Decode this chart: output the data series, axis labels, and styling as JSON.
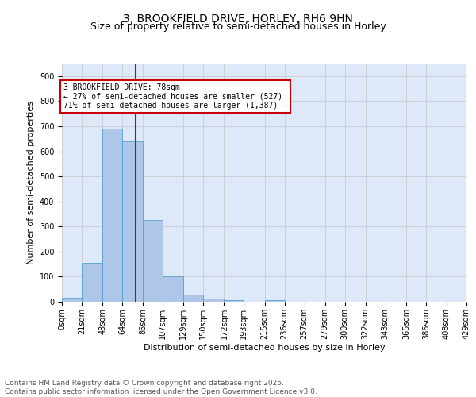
{
  "title": "3, BROOKFIELD DRIVE, HORLEY, RH6 9HN",
  "subtitle": "Size of property relative to semi-detached houses in Horley",
  "xlabel": "Distribution of semi-detached houses by size in Horley",
  "ylabel": "Number of semi-detached properties",
  "bin_edges": [
    0,
    21,
    43,
    64,
    86,
    107,
    129,
    150,
    172,
    193,
    215,
    236,
    257,
    279,
    300,
    322,
    343,
    365,
    386,
    408,
    429
  ],
  "bar_heights": [
    15,
    155,
    690,
    640,
    325,
    100,
    28,
    12,
    5,
    0,
    5,
    0,
    0,
    0,
    0,
    0,
    0,
    0,
    0,
    0
  ],
  "bar_color": "#aec6e8",
  "bar_edge_color": "#5a9fd4",
  "grid_color": "#cccccc",
  "bg_color": "#dde8f8",
  "property_value": 78,
  "property_line_color": "#cc0000",
  "annotation_text": "3 BROOKFIELD DRIVE: 78sqm\n← 27% of semi-detached houses are smaller (527)\n71% of semi-detached houses are larger (1,387) →",
  "annotation_box_color": "#cc0000",
  "ylim": [
    0,
    950
  ],
  "yticks": [
    0,
    100,
    200,
    300,
    400,
    500,
    600,
    700,
    800,
    900
  ],
  "xtick_labels": [
    "0sqm",
    "21sqm",
    "43sqm",
    "64sqm",
    "86sqm",
    "107sqm",
    "129sqm",
    "150sqm",
    "172sqm",
    "193sqm",
    "215sqm",
    "236sqm",
    "257sqm",
    "279sqm",
    "300sqm",
    "322sqm",
    "343sqm",
    "365sqm",
    "386sqm",
    "408sqm",
    "429sqm"
  ],
  "footer_text": "Contains HM Land Registry data © Crown copyright and database right 2025.\nContains public sector information licensed under the Open Government Licence v3.0.",
  "title_fontsize": 10,
  "subtitle_fontsize": 9,
  "axis_label_fontsize": 8,
  "tick_fontsize": 7,
  "footer_fontsize": 6.5
}
